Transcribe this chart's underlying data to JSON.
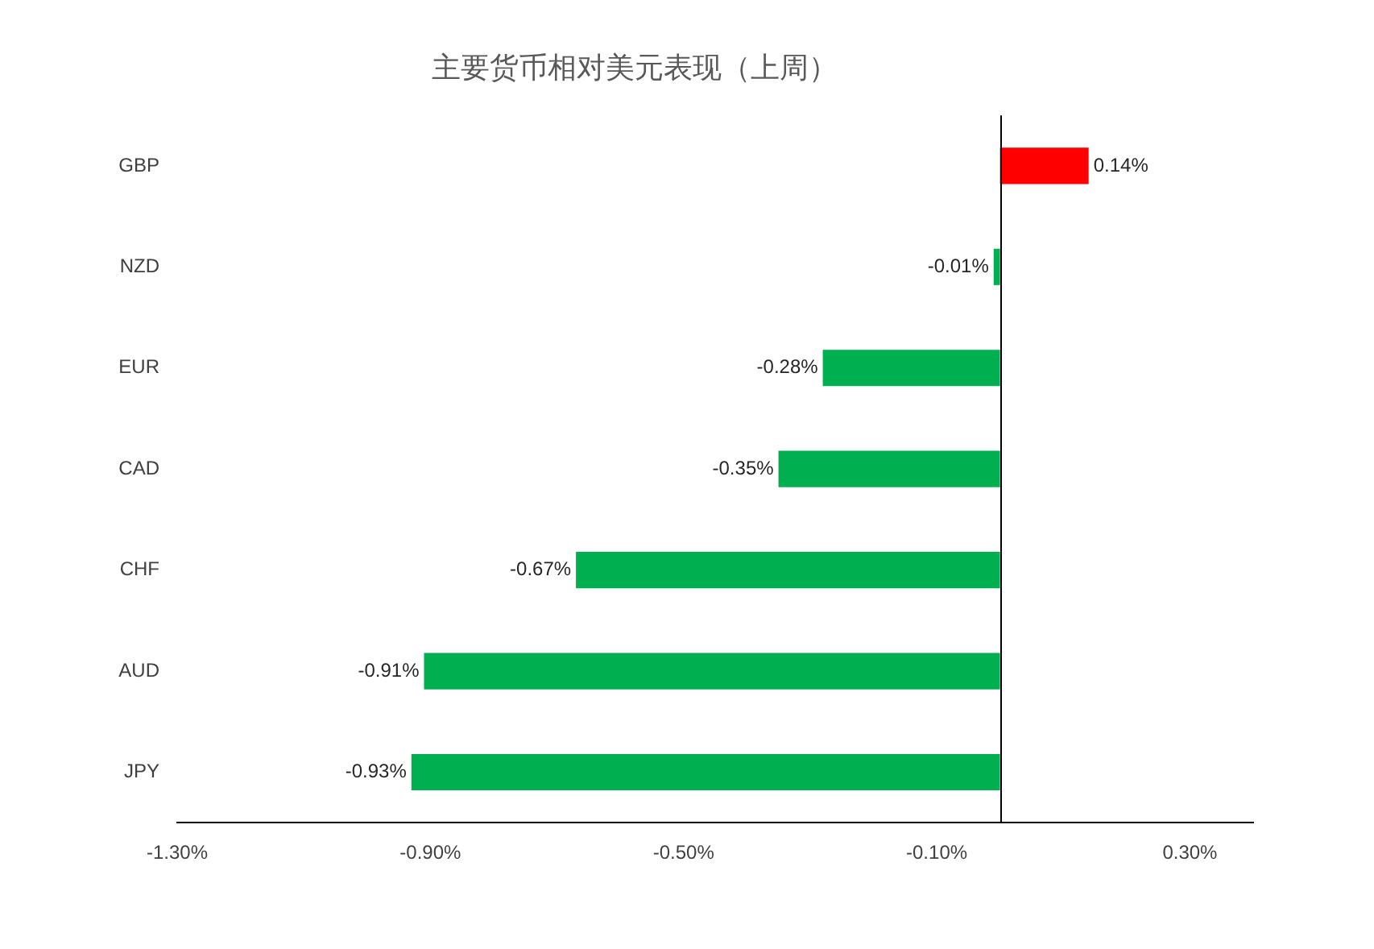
{
  "chart_data": {
    "type": "bar",
    "orientation": "horizontal",
    "title": "主要货币相对美元表现（上周）",
    "categories": [
      "GBP",
      "NZD",
      "EUR",
      "CAD",
      "CHF",
      "AUD",
      "JPY"
    ],
    "values": [
      0.14,
      -0.01,
      -0.28,
      -0.35,
      -0.67,
      -0.91,
      -0.93
    ],
    "colors": [
      "#ff0000",
      "#00b050",
      "#00b050",
      "#00b050",
      "#00b050",
      "#00b050",
      "#00b050"
    ],
    "value_labels": [
      "0.14%",
      "-0.01%",
      "-0.28%",
      "-0.35%",
      "-0.67%",
      "-0.91%",
      "-0.93%"
    ],
    "xlim": [
      -1.3,
      0.4
    ],
    "xticks": [
      {
        "value": -1.3,
        "label": "-1.30%"
      },
      {
        "value": -0.9,
        "label": "-0.90%"
      },
      {
        "value": -0.5,
        "label": "-0.50%"
      },
      {
        "value": -0.1,
        "label": "-0.10%"
      },
      {
        "value": 0.3,
        "label": "0.30%"
      }
    ],
    "grid": false,
    "legend": false
  }
}
